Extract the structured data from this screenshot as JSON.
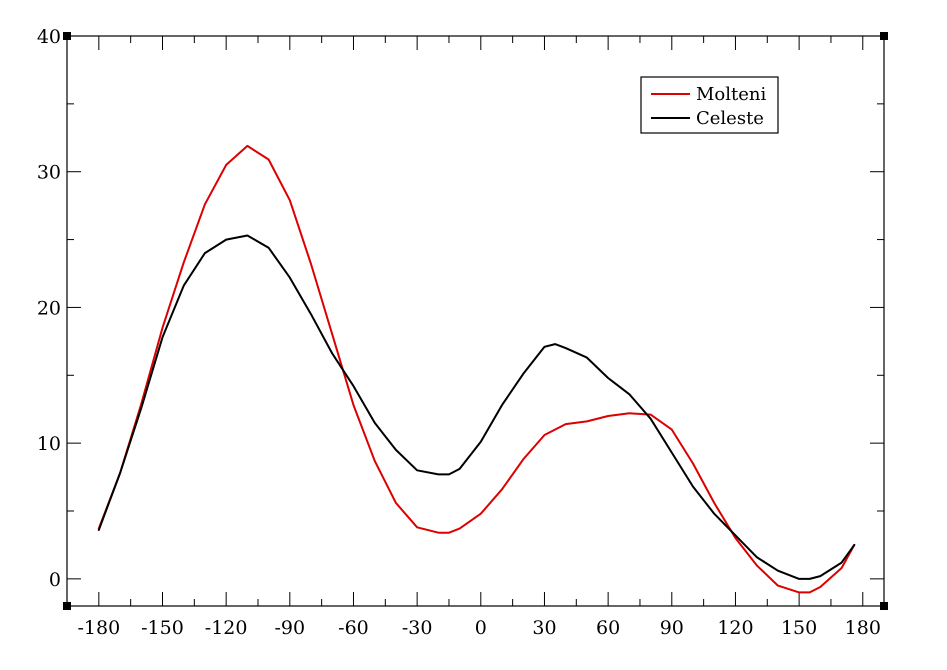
{
  "chart_data": {
    "type": "line",
    "title": "",
    "xlabel": "",
    "ylabel": "",
    "xlim": [
      -195,
      190
    ],
    "ylim": [
      -2,
      40
    ],
    "xticks": [
      -180,
      -150,
      -120,
      -90,
      -60,
      -30,
      0,
      30,
      60,
      90,
      120,
      150,
      180
    ],
    "yticks": [
      0,
      10,
      20,
      30,
      40
    ],
    "grid": false,
    "legend": "top-right",
    "series": [
      {
        "name": "Molteni",
        "color": "#dd0000",
        "x": [
          -180,
          -170,
          -160,
          -150,
          -140,
          -130,
          -120,
          -110,
          -100,
          -90,
          -80,
          -70,
          -60,
          -50,
          -40,
          -30,
          -20,
          -15,
          -10,
          0,
          10,
          20,
          30,
          40,
          50,
          60,
          70,
          80,
          90,
          100,
          110,
          120,
          130,
          140,
          150,
          155,
          160,
          170,
          176
        ],
        "y": [
          3.7,
          7.8,
          12.9,
          18.5,
          23.3,
          27.6,
          30.5,
          31.9,
          30.9,
          27.9,
          23.2,
          18.0,
          12.8,
          8.7,
          5.6,
          3.8,
          3.4,
          3.4,
          3.7,
          4.8,
          6.6,
          8.8,
          10.6,
          11.4,
          11.6,
          12.0,
          12.2,
          12.1,
          11.0,
          8.5,
          5.6,
          3.0,
          1.0,
          -0.5,
          -1.0,
          -1.0,
          -0.6,
          0.8,
          2.5
        ]
      },
      {
        "name": "Celeste",
        "color": "#000000",
        "x": [
          -180,
          -170,
          -160,
          -150,
          -140,
          -130,
          -120,
          -110,
          -100,
          -90,
          -80,
          -70,
          -60,
          -50,
          -40,
          -30,
          -20,
          -15,
          -10,
          0,
          10,
          20,
          30,
          35,
          40,
          50,
          60,
          70,
          80,
          90,
          100,
          110,
          120,
          130,
          140,
          150,
          155,
          160,
          170,
          176
        ],
        "y": [
          3.6,
          7.8,
          12.6,
          17.8,
          21.6,
          24.0,
          25.0,
          25.3,
          24.4,
          22.2,
          19.5,
          16.6,
          14.2,
          11.5,
          9.5,
          8.0,
          7.7,
          7.7,
          8.1,
          10.1,
          12.8,
          15.1,
          17.1,
          17.3,
          17.0,
          16.3,
          14.8,
          13.6,
          11.8,
          9.3,
          6.8,
          4.8,
          3.2,
          1.6,
          0.6,
          0.0,
          0.0,
          0.2,
          1.2,
          2.5
        ]
      }
    ]
  }
}
